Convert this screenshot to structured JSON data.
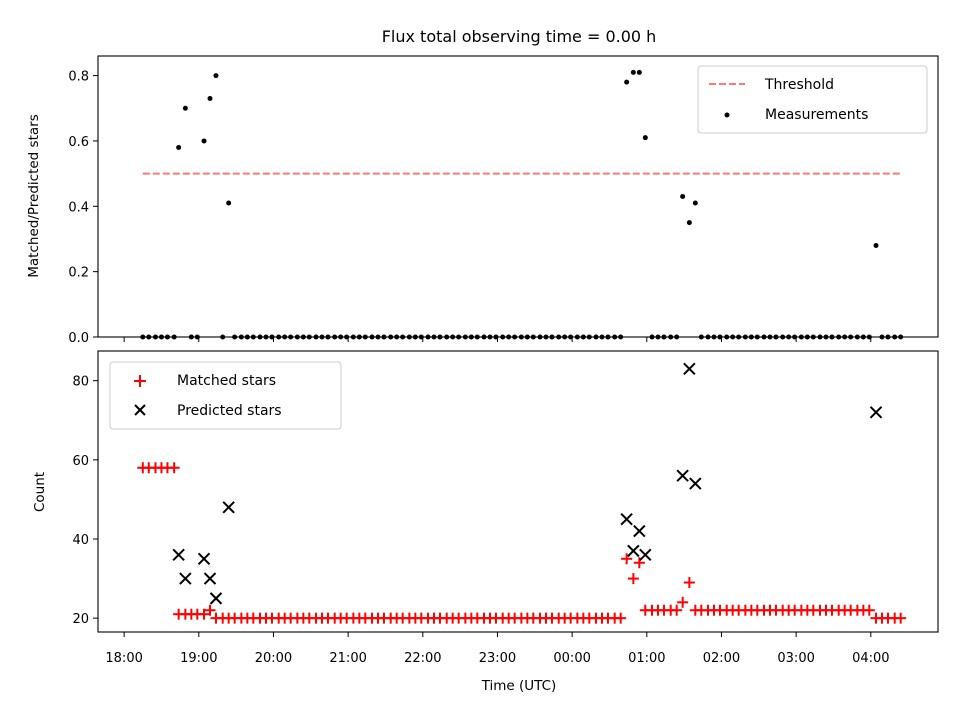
{
  "chart_data": [
    {
      "type": "scatter",
      "title": "Flux total observing time = 0.00 h",
      "ylabel": "Matched/Predicted stars",
      "ylim": [
        0,
        0.86
      ],
      "yticks": [
        "0.0",
        "0.2",
        "0.4",
        "0.6",
        "0.8"
      ],
      "ytick_values": [
        0,
        0.2,
        0.4,
        0.6,
        0.8
      ],
      "xticks_shown": false,
      "legend_position": "top-right",
      "legend": [
        "Threshold",
        "Measurements"
      ],
      "threshold": {
        "name": "Threshold",
        "value": 0.5,
        "x_start": 18.25,
        "x_end": 28.42,
        "color": "#ff7777",
        "style": "dashed"
      },
      "measurements": {
        "name": "Measurements",
        "color": "#000000",
        "x": [
          18.25,
          18.33,
          18.42,
          18.5,
          18.58,
          18.67,
          18.73,
          18.82,
          18.9,
          18.98,
          19.07,
          19.15,
          19.23,
          19.32,
          19.4,
          19.48,
          19.57,
          19.65,
          19.73,
          19.82,
          19.9,
          19.98,
          20.07,
          20.15,
          20.23,
          20.32,
          20.4,
          20.48,
          20.57,
          20.65,
          20.73,
          20.82,
          20.9,
          20.98,
          21.07,
          21.15,
          21.23,
          21.32,
          21.4,
          21.48,
          21.57,
          21.65,
          21.73,
          21.82,
          21.9,
          21.98,
          22.07,
          22.15,
          22.23,
          22.32,
          22.4,
          22.48,
          22.57,
          22.65,
          22.73,
          22.82,
          22.9,
          22.98,
          23.07,
          23.15,
          23.23,
          23.32,
          23.4,
          23.48,
          23.57,
          23.65,
          23.73,
          23.82,
          23.9,
          23.98,
          24.07,
          24.15,
          24.23,
          24.32,
          24.4,
          24.48,
          24.57,
          24.65,
          24.73,
          24.82,
          24.9,
          24.98,
          25.07,
          25.15,
          25.23,
          25.32,
          25.4,
          25.48,
          25.57,
          25.65,
          25.73,
          25.82,
          25.9,
          25.98,
          26.07,
          26.15,
          26.23,
          26.32,
          26.4,
          26.48,
          26.57,
          26.65,
          26.73,
          26.82,
          26.9,
          26.98,
          27.07,
          27.15,
          27.23,
          27.32,
          27.4,
          27.48,
          27.57,
          27.65,
          27.73,
          27.82,
          27.9,
          27.98,
          28.07,
          28.15,
          28.23,
          28.32,
          28.4
        ],
        "y": [
          0,
          0,
          0,
          0,
          0,
          0,
          0.58,
          0.7,
          0,
          0,
          0.6,
          0.73,
          0.8,
          0,
          0.41,
          0,
          0,
          0,
          0,
          0,
          0,
          0,
          0,
          0,
          0,
          0,
          0,
          0,
          0,
          0,
          0,
          0,
          0,
          0,
          0,
          0,
          0,
          0,
          0,
          0,
          0,
          0,
          0,
          0,
          0,
          0,
          0,
          0,
          0,
          0,
          0,
          0,
          0,
          0,
          0,
          0,
          0,
          0,
          0,
          0,
          0,
          0,
          0,
          0,
          0,
          0,
          0,
          0,
          0,
          0,
          0,
          0,
          0,
          0,
          0,
          0,
          0,
          0,
          0.78,
          0.81,
          0.81,
          0.61,
          0,
          0,
          0,
          0,
          0,
          0.43,
          0.35,
          0.41,
          0,
          0,
          0,
          0,
          0,
          0,
          0,
          0,
          0,
          0,
          0,
          0,
          0,
          0,
          0,
          0,
          0,
          0,
          0,
          0,
          0,
          0,
          0,
          0,
          0,
          0,
          0,
          0,
          0.28,
          0,
          0,
          0,
          0
        ]
      }
    },
    {
      "type": "scatter",
      "ylabel": "Count",
      "xlabel": "Time (UTC)",
      "ylim": [
        16.5,
        87.5
      ],
      "xlim": [
        17.65,
        28.9
      ],
      "yticks": [
        "20",
        "40",
        "60",
        "80"
      ],
      "ytick_values": [
        20,
        40,
        60,
        80
      ],
      "xticks": [
        "18:00",
        "19:00",
        "20:00",
        "21:00",
        "22:00",
        "23:00",
        "00:00",
        "01:00",
        "02:00",
        "03:00",
        "04:00"
      ],
      "xtick_values": [
        18,
        19,
        20,
        21,
        22,
        23,
        24,
        25,
        26,
        27,
        28
      ],
      "legend_position": "top-left",
      "legend": [
        "Matched stars",
        "Predicted stars"
      ],
      "series": [
        {
          "name": "Matched stars",
          "marker": "+",
          "color": "#ff0000",
          "x": [
            18.25,
            18.33,
            18.42,
            18.5,
            18.58,
            18.67,
            18.73,
            18.82,
            18.9,
            18.98,
            19.07,
            19.15,
            19.23,
            19.32,
            19.4,
            19.48,
            19.57,
            19.65,
            19.73,
            19.82,
            19.9,
            19.98,
            20.07,
            20.15,
            20.23,
            20.32,
            20.4,
            20.48,
            20.57,
            20.65,
            20.73,
            20.82,
            20.9,
            20.98,
            21.07,
            21.15,
            21.23,
            21.32,
            21.4,
            21.48,
            21.57,
            21.65,
            21.73,
            21.82,
            21.9,
            21.98,
            22.07,
            22.15,
            22.23,
            22.32,
            22.4,
            22.48,
            22.57,
            22.65,
            22.73,
            22.82,
            22.9,
            22.98,
            23.07,
            23.15,
            23.23,
            23.32,
            23.4,
            23.48,
            23.57,
            23.65,
            23.73,
            23.82,
            23.9,
            23.98,
            24.07,
            24.15,
            24.23,
            24.32,
            24.4,
            24.48,
            24.57,
            24.65,
            24.73,
            24.82,
            24.9,
            24.98,
            25.07,
            25.15,
            25.23,
            25.32,
            25.4,
            25.48,
            25.57,
            25.65,
            25.73,
            25.82,
            25.9,
            25.98,
            26.07,
            26.15,
            26.23,
            26.32,
            26.4,
            26.48,
            26.57,
            26.65,
            26.73,
            26.82,
            26.9,
            26.98,
            27.07,
            27.15,
            27.23,
            27.32,
            27.4,
            27.48,
            27.57,
            27.65,
            27.73,
            27.82,
            27.9,
            27.98,
            28.07,
            28.15,
            28.23,
            28.32,
            28.4
          ],
          "y": [
            58,
            58,
            58,
            58,
            58,
            58,
            21,
            21,
            21,
            21,
            21,
            22,
            20,
            20,
            20,
            20,
            20,
            20,
            20,
            20,
            20,
            20,
            20,
            20,
            20,
            20,
            20,
            20,
            20,
            20,
            20,
            20,
            20,
            20,
            20,
            20,
            20,
            20,
            20,
            20,
            20,
            20,
            20,
            20,
            20,
            20,
            20,
            20,
            20,
            20,
            20,
            20,
            20,
            20,
            20,
            20,
            20,
            20,
            20,
            20,
            20,
            20,
            20,
            20,
            20,
            20,
            20,
            20,
            20,
            20,
            20,
            20,
            20,
            20,
            20,
            20,
            20,
            20,
            35,
            30,
            34,
            22,
            22,
            22,
            22,
            22,
            22,
            24,
            29,
            22,
            22,
            22,
            22,
            22,
            22,
            22,
            22,
            22,
            22,
            22,
            22,
            22,
            22,
            22,
            22,
            22,
            22,
            22,
            22,
            22,
            22,
            22,
            22,
            22,
            22,
            22,
            22,
            22,
            20,
            20,
            20,
            20,
            20
          ]
        },
        {
          "name": "Predicted stars",
          "marker": "x",
          "color": "#000000",
          "x": [
            18.73,
            18.82,
            19.07,
            19.15,
            19.23,
            19.4,
            24.73,
            24.82,
            24.9,
            24.98,
            25.48,
            25.57,
            25.65,
            28.07
          ],
          "y": [
            36,
            30,
            35,
            30,
            25,
            48,
            45,
            37,
            42,
            36,
            56,
            83,
            54,
            72
          ]
        }
      ]
    }
  ]
}
